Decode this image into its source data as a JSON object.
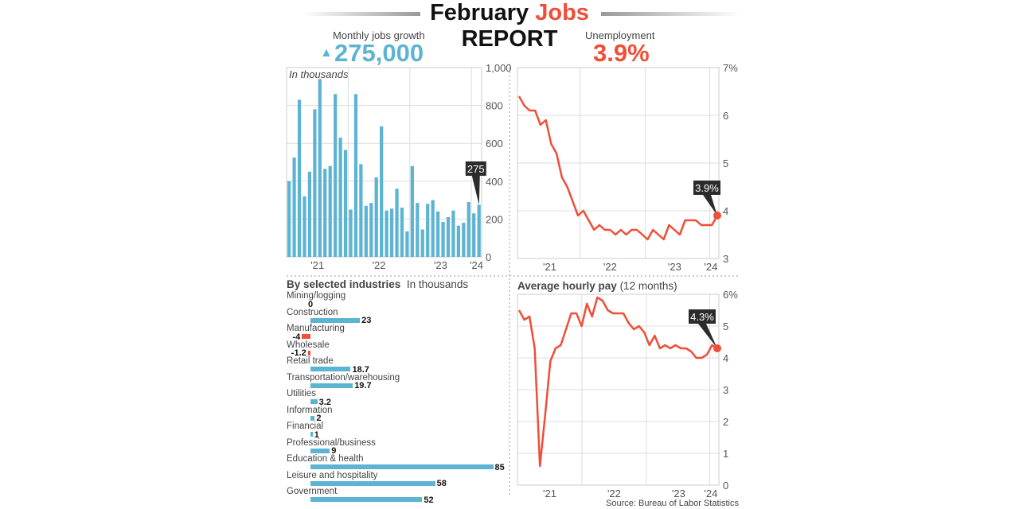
{
  "header": {
    "title_part1": "February",
    "title_part2": "Jobs",
    "subtitle": "REPORT",
    "jobs_label": "Monthly jobs growth",
    "jobs_value": "275,000",
    "jobs_trend_icon": "triangle-up-icon",
    "unemp_label": "Unemployment",
    "unemp_value": "3.9%"
  },
  "colors": {
    "blue": "#5db4d2",
    "red": "#f04e37",
    "callout": "#2b2b2b"
  },
  "source": "Source: Bureau of Labor Statistics",
  "chart_data": [
    {
      "type": "bar",
      "note": "In thousands",
      "ylim": [
        0,
        1000
      ],
      "yticks": [
        "0",
        "200",
        "400",
        "600",
        "800",
        "1,000"
      ],
      "xticks": [
        "'21",
        "'22",
        "'23",
        "'24"
      ],
      "x": [
        "2021-01",
        "2021-02",
        "2021-03",
        "2021-04",
        "2021-05",
        "2021-06",
        "2021-07",
        "2021-08",
        "2021-09",
        "2021-10",
        "2021-11",
        "2021-12",
        "2022-01",
        "2022-02",
        "2022-03",
        "2022-04",
        "2022-05",
        "2022-06",
        "2022-07",
        "2022-08",
        "2022-09",
        "2022-10",
        "2022-11",
        "2022-12",
        "2023-01",
        "2023-02",
        "2023-03",
        "2023-04",
        "2023-05",
        "2023-06",
        "2023-07",
        "2023-08",
        "2023-09",
        "2023-10",
        "2023-11",
        "2023-12",
        "2024-01",
        "2024-02"
      ],
      "values": [
        400,
        525,
        830,
        320,
        450,
        780,
        940,
        465,
        480,
        860,
        630,
        565,
        250,
        860,
        490,
        270,
        285,
        420,
        690,
        245,
        255,
        360,
        260,
        135,
        480,
        285,
        145,
        280,
        300,
        240,
        185,
        210,
        245,
        165,
        180,
        290,
        230,
        275
      ],
      "callout": "275"
    },
    {
      "type": "line",
      "ylim": [
        3,
        7
      ],
      "yticks": [
        "3",
        "4",
        "5",
        "6",
        "7%"
      ],
      "xticks": [
        "'21",
        "'22",
        "'23",
        "'24"
      ],
      "values": [
        6.4,
        6.2,
        6.1,
        6.1,
        5.8,
        5.9,
        5.4,
        5.2,
        4.7,
        4.5,
        4.2,
        3.9,
        4.0,
        3.8,
        3.6,
        3.7,
        3.6,
        3.6,
        3.5,
        3.6,
        3.5,
        3.6,
        3.6,
        3.5,
        3.4,
        3.6,
        3.5,
        3.4,
        3.7,
        3.6,
        3.5,
        3.8,
        3.8,
        3.8,
        3.7,
        3.7,
        3.7,
        3.9
      ],
      "callout": "3.9%"
    },
    {
      "type": "bar",
      "orientation": "horizontal",
      "title": "By selected industries",
      "unit": "In thousands",
      "categories": [
        "Mining/logging",
        "Construction",
        "Manufacturing",
        "Wholesale",
        "Retail trade",
        "Transportation/warehousing",
        "Utilities",
        "Information",
        "Financial",
        "Professional/business",
        "Education & health",
        "Leisure and hospitality",
        "Government"
      ],
      "values": [
        0,
        23,
        -4,
        -1.2,
        18.7,
        19.7,
        3.2,
        2,
        1,
        9,
        85,
        58,
        52
      ],
      "labels": [
        "0",
        "23",
        "-4",
        "-1.2",
        "18.7",
        "19.7",
        "3.2",
        "2",
        "1",
        "9",
        "85",
        "58",
        "52"
      ]
    },
    {
      "type": "line",
      "title": "Average hourly pay",
      "title_note": "(12 months)",
      "ylim": [
        0,
        6
      ],
      "yticks": [
        "0",
        "1",
        "2",
        "3",
        "4",
        "5",
        "6%"
      ],
      "xticks": [
        "'21",
        "'22",
        "'23",
        "'24"
      ],
      "values": [
        5.5,
        5.2,
        5.3,
        4.3,
        0.6,
        2.2,
        3.9,
        4.3,
        4.4,
        4.9,
        5.4,
        5.4,
        5.0,
        5.7,
        5.3,
        5.9,
        5.8,
        5.5,
        5.4,
        5.4,
        5.4,
        5.1,
        4.9,
        5.0,
        4.8,
        4.4,
        4.7,
        4.3,
        4.4,
        4.3,
        4.4,
        4.3,
        4.3,
        4.2,
        4.0,
        4.0,
        4.1,
        4.4,
        4.3
      ],
      "callout": "4.3%"
    }
  ]
}
